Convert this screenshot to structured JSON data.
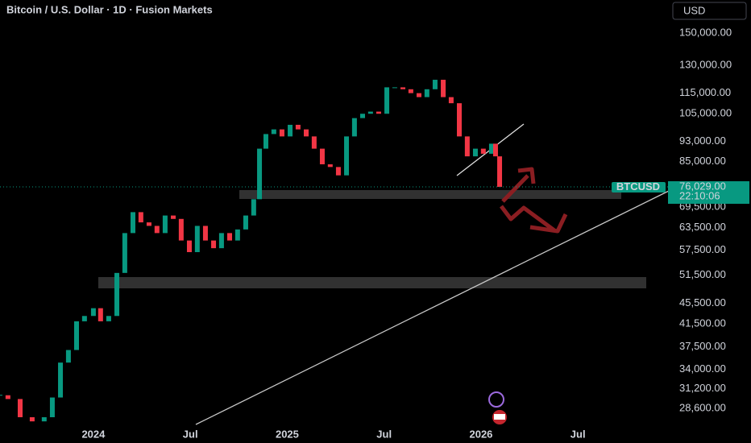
{
  "header": {
    "title": "Bitcoin / U.S. Dollar · 1D · Fusion Markets",
    "currency_button": "USD"
  },
  "chart_data": {
    "type": "candlestick",
    "scale": "log",
    "grid": false,
    "symbol": "BTCUSD",
    "last_price": {
      "value": 76029,
      "label": "76,029.00"
    },
    "countdown": "22:10:06",
    "x": [
      2023.518,
      2023.559,
      2023.622,
      2023.684,
      2023.746,
      2023.788,
      2023.83,
      2023.871,
      2023.913,
      2023.954,
      2024.0,
      2024.037,
      2024.079,
      2024.121,
      2024.162,
      2024.204,
      2024.245,
      2024.287,
      2024.328,
      2024.37,
      2024.412,
      2024.453,
      2024.495,
      2024.536,
      2024.578,
      2024.62,
      2024.661,
      2024.703,
      2024.744,
      2024.786,
      2024.827,
      2024.857,
      2024.89,
      2024.931,
      2024.973,
      2025.015,
      2025.056,
      2025.098,
      2025.139,
      2025.181,
      2025.222,
      2025.264,
      2025.306,
      2025.347,
      2025.389,
      2025.43,
      2025.472,
      2025.514,
      2025.555,
      2025.597,
      2025.638,
      2025.68,
      2025.721,
      2025.763,
      2025.805,
      2025.846,
      2025.888,
      2025.929,
      2025.971,
      2026.012,
      2026.054,
      2026.075,
      2026.096
    ],
    "series": [
      {
        "name": "BTCUSD",
        "up_color": "#089981",
        "down_color": "#f23645",
        "values": [
          30300,
          29800,
          27500,
          27000,
          27500,
          30000,
          35000,
          37000,
          42000,
          43000,
          44500,
          42000,
          43000,
          52000,
          62000,
          68000,
          65000,
          64000,
          62000,
          67000,
          66000,
          60000,
          57000,
          64000,
          60000,
          58000,
          62000,
          60000,
          63000,
          67000,
          72000,
          90000,
          96000,
          98000,
          95000,
          100000,
          98000,
          95000,
          90000,
          84000,
          83000,
          80000,
          95000,
          103000,
          105000,
          106000,
          105000,
          118000,
          118000,
          117000,
          115000,
          113000,
          117000,
          122000,
          113000,
          110000,
          95000,
          87000,
          90000,
          88000,
          92000,
          87000,
          76029
        ]
      }
    ],
    "xlim": [
      2023.518,
      2026.969
    ],
    "ylim": [
      26350,
      173500
    ],
    "xticks": [
      {
        "value": 2024,
        "label": "2024"
      },
      {
        "value": 2024.5,
        "label": "Jul"
      },
      {
        "value": 2025,
        "label": "2025"
      },
      {
        "value": 2025.5,
        "label": "Jul"
      },
      {
        "value": 2026,
        "label": "2026"
      },
      {
        "value": 2026.5,
        "label": "Jul"
      }
    ],
    "yticks": [
      {
        "value": 150000,
        "label": "150,000.00"
      },
      {
        "value": 130000,
        "label": "130,000.00"
      },
      {
        "value": 115000,
        "label": "115,000.00"
      },
      {
        "value": 105000,
        "label": "105,000.00"
      },
      {
        "value": 93000,
        "label": "93,000.00"
      },
      {
        "value": 85000,
        "label": "85,000.00"
      },
      {
        "value": 69500,
        "label": "69,500.00"
      },
      {
        "value": 63500,
        "label": "63,500.00"
      },
      {
        "value": 57500,
        "label": "57,500.00"
      },
      {
        "value": 51500,
        "label": "51,500.00"
      },
      {
        "value": 45500,
        "label": "45,500.00"
      },
      {
        "value": 41500,
        "label": "41,500.00"
      },
      {
        "value": 37500,
        "label": "37,500.00"
      },
      {
        "value": 34000,
        "label": "34,000.00"
      },
      {
        "value": 31200,
        "label": "31,200.00"
      },
      {
        "value": 28600,
        "label": "28,600.00"
      }
    ]
  }
}
